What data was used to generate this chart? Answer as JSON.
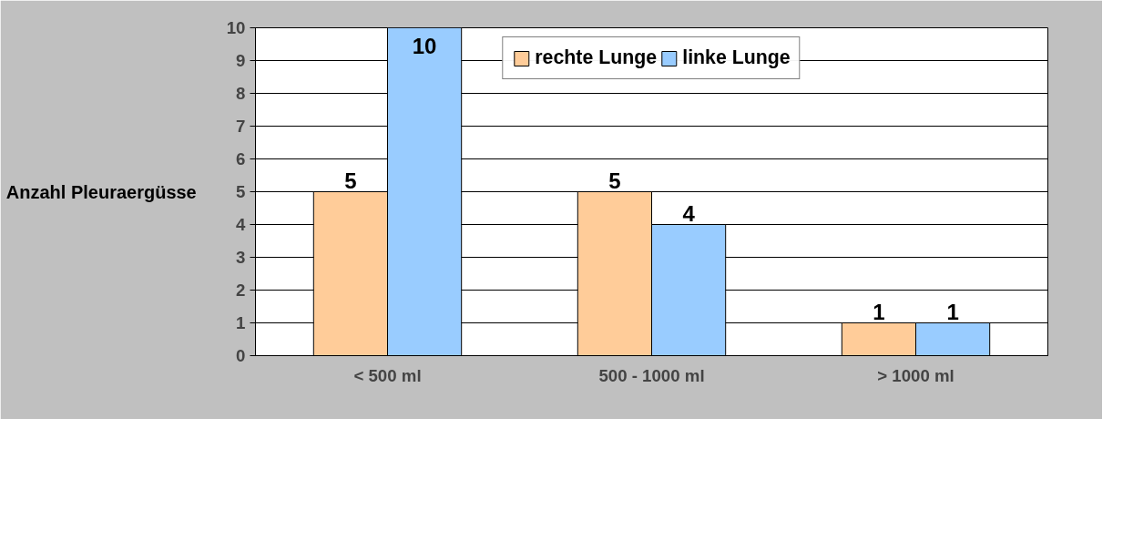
{
  "chart_data": {
    "type": "bar",
    "categories": [
      "< 500 ml",
      "500 - 1000 ml",
      "> 1000 ml"
    ],
    "series": [
      {
        "name": "rechte Lunge",
        "color": "#ffcc99",
        "values": [
          5,
          5,
          1
        ]
      },
      {
        "name": "linke Lunge",
        "color": "#99ccff",
        "values": [
          10,
          4,
          1
        ]
      }
    ],
    "ylabel": "Anzahl Pleuraergüsse",
    "ylim": [
      0,
      10
    ],
    "yticks": [
      0,
      1,
      2,
      3,
      4,
      5,
      6,
      7,
      8,
      9,
      10
    ],
    "grid": "y",
    "legend": "top",
    "data_labels": true
  }
}
